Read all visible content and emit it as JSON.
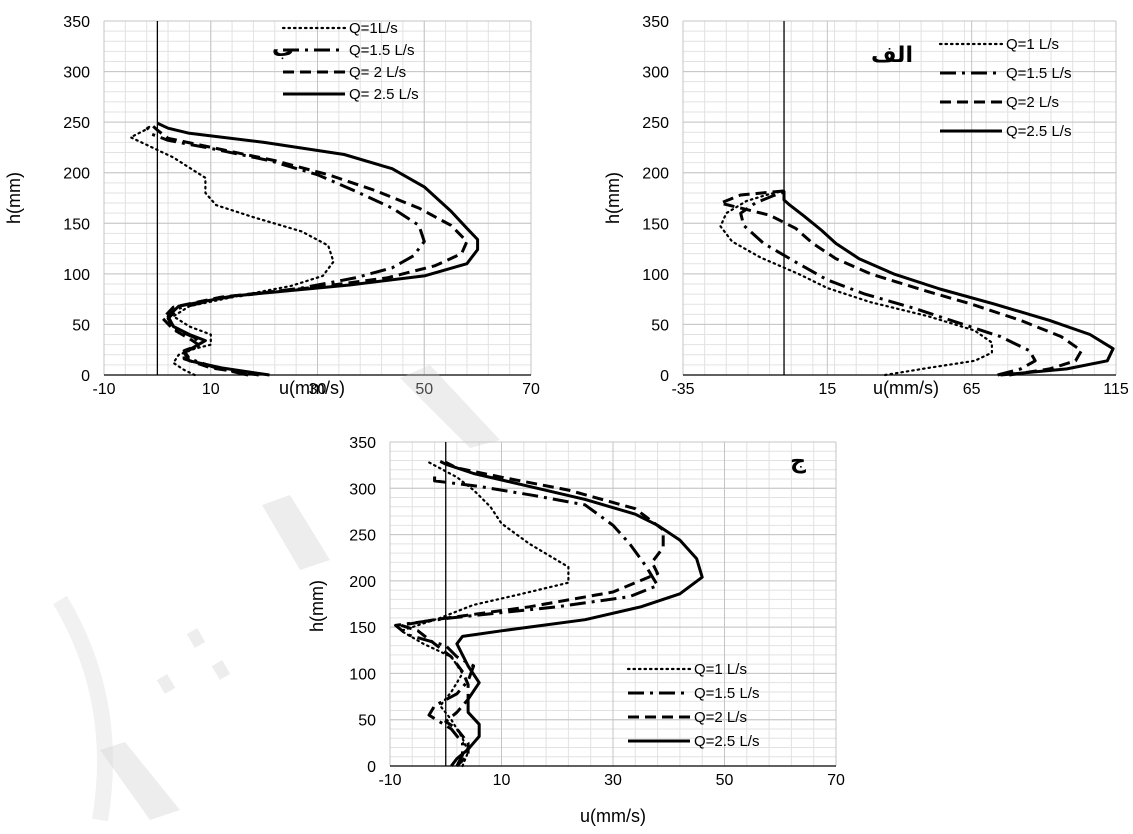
{
  "chart_data": [
    {
      "id": "b",
      "type": "line",
      "tag": "ب",
      "xlabel": "u(mm/s)",
      "ylabel": "h(mm)",
      "xlim": [
        -10,
        70
      ],
      "ylim": [
        0,
        350
      ],
      "xticks": [
        -10,
        10,
        30,
        50,
        70
      ],
      "yticks": [
        0,
        50,
        100,
        150,
        200,
        250,
        300,
        350
      ],
      "grid": true,
      "legend": "top-right",
      "series": [
        {
          "name": "Q=1L/s",
          "style": "dotted",
          "points": [
            [
              7,
              0
            ],
            [
              5,
              5
            ],
            [
              3,
              12
            ],
            [
              4,
              20
            ],
            [
              7,
              26
            ],
            [
              10,
              30
            ],
            [
              10,
              40
            ],
            [
              6,
              48
            ],
            [
              3,
              58
            ],
            [
              6,
              68
            ],
            [
              15,
              78
            ],
            [
              25,
              88
            ],
            [
              31,
              98
            ],
            [
              33,
              112
            ],
            [
              32,
              128
            ],
            [
              27,
              142
            ],
            [
              18,
              156
            ],
            [
              11,
              168
            ],
            [
              9,
              180
            ],
            [
              9,
              195
            ],
            [
              6,
              205
            ],
            [
              3,
              215
            ],
            [
              -1,
              225
            ],
            [
              -5,
              235
            ],
            [
              -2,
              243
            ],
            [
              -1,
              248
            ]
          ]
        },
        {
          "name": "Q=1.5 L/s",
          "style": "dashdot",
          "points": [
            [
              17,
              0
            ],
            [
              11,
              7
            ],
            [
              6,
              16
            ],
            [
              5,
              24
            ],
            [
              8,
              30
            ],
            [
              7,
              37
            ],
            [
              3,
              46
            ],
            [
              2,
              56
            ],
            [
              4,
              66
            ],
            [
              12,
              76
            ],
            [
              27,
              86
            ],
            [
              37,
              96
            ],
            [
              44,
              106
            ],
            [
              48,
              118
            ],
            [
              50,
              132
            ],
            [
              49,
              148
            ],
            [
              44,
              165
            ],
            [
              37,
              182
            ],
            [
              30,
              198
            ],
            [
              21,
              212
            ],
            [
              10,
              224
            ],
            [
              2,
              232
            ],
            [
              -1,
              238
            ],
            [
              -2,
              245
            ]
          ]
        },
        {
          "name": "Q= 2 L/s",
          "style": "dashed",
          "points": [
            [
              19,
              0
            ],
            [
              10,
              7
            ],
            [
              5,
              16
            ],
            [
              5,
              23
            ],
            [
              8,
              29
            ],
            [
              6,
              36
            ],
            [
              3,
              45
            ],
            [
              1,
              56
            ],
            [
              3,
              67
            ],
            [
              12,
              77
            ],
            [
              30,
              87
            ],
            [
              43,
              96
            ],
            [
              52,
              108
            ],
            [
              57,
              120
            ],
            [
              58,
              132
            ],
            [
              55,
              148
            ],
            [
              49,
              165
            ],
            [
              41,
              182
            ],
            [
              32,
              198
            ],
            [
              22,
              212
            ],
            [
              11,
              224
            ],
            [
              2,
              234
            ],
            [
              0,
              242
            ],
            [
              -1,
              247
            ]
          ]
        },
        {
          "name": "Q= 2.5 L/s",
          "style": "solid",
          "points": [
            [
              21,
              0
            ],
            [
              12,
              7
            ],
            [
              6,
              14
            ],
            [
              5,
              22
            ],
            [
              7,
              28
            ],
            [
              9,
              34
            ],
            [
              6,
              40
            ],
            [
              3,
              48
            ],
            [
              2,
              58
            ],
            [
              4,
              68
            ],
            [
              14,
              78
            ],
            [
              36,
              89
            ],
            [
              50,
              98
            ],
            [
              58,
              110
            ],
            [
              60,
              124
            ],
            [
              60,
              134
            ],
            [
              58,
              145
            ],
            [
              55,
              162
            ],
            [
              50,
              186
            ],
            [
              44,
              204
            ],
            [
              35,
              218
            ],
            [
              20,
              230
            ],
            [
              6,
              239
            ],
            [
              2,
              244
            ],
            [
              0,
              249
            ]
          ]
        }
      ]
    },
    {
      "id": "alef",
      "type": "line",
      "tag": "الف",
      "xlabel": "u(mm/s)",
      "ylabel": "h(mm)",
      "xlim": [
        -35,
        115
      ],
      "ylim": [
        0,
        350
      ],
      "xticks": [
        -35,
        15,
        65,
        115
      ],
      "yticks": [
        0,
        50,
        100,
        150,
        200,
        250,
        300,
        350
      ],
      "grid": true,
      "legend": "top-right",
      "series": [
        {
          "name": "Q=1 L/s",
          "style": "dotted",
          "points": [
            [
              35,
              0
            ],
            [
              50,
              7
            ],
            [
              66,
              14
            ],
            [
              72,
              22
            ],
            [
              72,
              32
            ],
            [
              66,
              44
            ],
            [
              50,
              58
            ],
            [
              30,
              72
            ],
            [
              15,
              86
            ],
            [
              5,
              100
            ],
            [
              -8,
              116
            ],
            [
              -18,
              132
            ],
            [
              -22,
              147
            ],
            [
              -20,
              160
            ],
            [
              -13,
              172
            ],
            [
              -5,
              179
            ],
            [
              0,
              182
            ]
          ]
        },
        {
          "name": "Q=1.5 L/s",
          "style": "dashdot",
          "points": [
            [
              74,
              0
            ],
            [
              82,
              6
            ],
            [
              87,
              14
            ],
            [
              85,
              24
            ],
            [
              75,
              38
            ],
            [
              60,
              52
            ],
            [
              45,
              66
            ],
            [
              28,
              80
            ],
            [
              15,
              94
            ],
            [
              5,
              110
            ],
            [
              -7,
              130
            ],
            [
              -14,
              148
            ],
            [
              -15,
              160
            ],
            [
              -10,
              170
            ],
            [
              -4,
              177
            ],
            [
              0,
              181
            ]
          ]
        },
        {
          "name": "Q=2 L/s",
          "style": "dashed",
          "points": [
            [
              78,
              0
            ],
            [
              92,
              6
            ],
            [
              101,
              14
            ],
            [
              103,
              24
            ],
            [
              96,
              38
            ],
            [
              82,
              54
            ],
            [
              65,
              70
            ],
            [
              48,
              84
            ],
            [
              30,
              100
            ],
            [
              18,
              115
            ],
            [
              10,
              130
            ],
            [
              4,
              145
            ],
            [
              -5,
              158
            ],
            [
              -22,
              170
            ],
            [
              -15,
              178
            ],
            [
              0,
              182
            ]
          ]
        },
        {
          "name": "Q=2.5 L/s",
          "style": "solid",
          "points": [
            [
              75,
              0
            ],
            [
              98,
              6
            ],
            [
              112,
              14
            ],
            [
              114,
              26
            ],
            [
              106,
              40
            ],
            [
              92,
              54
            ],
            [
              73,
              70
            ],
            [
              54,
              85
            ],
            [
              38,
              100
            ],
            [
              26,
              115
            ],
            [
              18,
              130
            ],
            [
              13,
              143
            ],
            [
              7,
              157
            ],
            [
              2,
              168
            ],
            [
              0,
              173
            ],
            [
              0,
              182
            ]
          ]
        }
      ]
    },
    {
      "id": "jim",
      "type": "line",
      "tag": "ج",
      "xlabel": "u(mm/s)",
      "ylabel": "h(mm)",
      "xlim": [
        -10,
        70
      ],
      "ylim": [
        0,
        350
      ],
      "xticks": [
        -10,
        10,
        30,
        50,
        70
      ],
      "yticks": [
        0,
        50,
        100,
        150,
        200,
        250,
        300,
        350
      ],
      "grid": true,
      "legend": "bottom-right",
      "series": [
        {
          "name": "Q=1 L/s",
          "style": "dotted",
          "points": [
            [
              3,
              0
            ],
            [
              4,
              15
            ],
            [
              3,
              30
            ],
            [
              1,
              50
            ],
            [
              -1,
              65
            ],
            [
              1,
              80
            ],
            [
              3,
              100
            ],
            [
              1,
              118
            ],
            [
              -4,
              132
            ],
            [
              -8,
              146
            ],
            [
              -1,
              160
            ],
            [
              5,
              174
            ],
            [
              13,
              185
            ],
            [
              22,
              198
            ],
            [
              22,
              215
            ],
            [
              15,
              240
            ],
            [
              10,
              262
            ],
            [
              8,
              280
            ],
            [
              5,
              298
            ],
            [
              2,
              312
            ],
            [
              -3,
              328
            ]
          ]
        },
        {
          "name": "Q=1.5 L/s",
          "style": "dashdot",
          "points": [
            [
              2,
              0
            ],
            [
              3,
              12
            ],
            [
              3,
              25
            ],
            [
              1,
              40
            ],
            [
              -3,
              55
            ],
            [
              -2,
              65
            ],
            [
              2,
              78
            ],
            [
              4,
              92
            ],
            [
              5,
              108
            ],
            [
              2,
              118
            ],
            [
              0,
              130
            ],
            [
              -7,
              142
            ],
            [
              -9,
              152
            ],
            [
              1,
              160
            ],
            [
              20,
              172
            ],
            [
              33,
              183
            ],
            [
              38,
              195
            ],
            [
              36,
              215
            ],
            [
              33,
              240
            ],
            [
              30,
              260
            ],
            [
              25,
              282
            ],
            [
              16,
              292
            ],
            [
              6,
              302
            ],
            [
              -2,
              308
            ],
            [
              -2,
              316
            ]
          ]
        },
        {
          "name": "Q=2 L/s",
          "style": "dashed",
          "points": [
            [
              2,
              0
            ],
            [
              4,
              12
            ],
            [
              4,
              25
            ],
            [
              2,
              40
            ],
            [
              0,
              48
            ],
            [
              2,
              58
            ],
            [
              4,
              72
            ],
            [
              4,
              88
            ],
            [
              3,
              102
            ],
            [
              1,
              118
            ],
            [
              -2,
              132
            ],
            [
              -5,
              146
            ],
            [
              -8,
              152
            ],
            [
              -2,
              158
            ],
            [
              15,
              172
            ],
            [
              30,
              188
            ],
            [
              38,
              208
            ],
            [
              37,
              220
            ],
            [
              39,
              236
            ],
            [
              39,
              255
            ],
            [
              34,
              278
            ],
            [
              22,
              298
            ],
            [
              10,
              312
            ],
            [
              2,
              322
            ],
            [
              0,
              328
            ]
          ]
        },
        {
          "name": "Q=2.5 L/s",
          "style": "solid",
          "points": [
            [
              1,
              0
            ],
            [
              2,
              8
            ],
            [
              4,
              18
            ],
            [
              6,
              32
            ],
            [
              6,
              45
            ],
            [
              4,
              58
            ],
            [
              4,
              72
            ],
            [
              6,
              90
            ],
            [
              4,
              108
            ],
            [
              3,
              120
            ],
            [
              2,
              132
            ],
            [
              3,
              140
            ],
            [
              10,
              146
            ],
            [
              25,
              158
            ],
            [
              35,
              172
            ],
            [
              42,
              186
            ],
            [
              46,
              204
            ],
            [
              45,
              224
            ],
            [
              42,
              244
            ],
            [
              38,
              260
            ],
            [
              34,
              272
            ],
            [
              25,
              288
            ],
            [
              15,
              302
            ],
            [
              5,
              316
            ],
            [
              0,
              326
            ],
            [
              -1,
              329
            ]
          ]
        }
      ]
    }
  ]
}
